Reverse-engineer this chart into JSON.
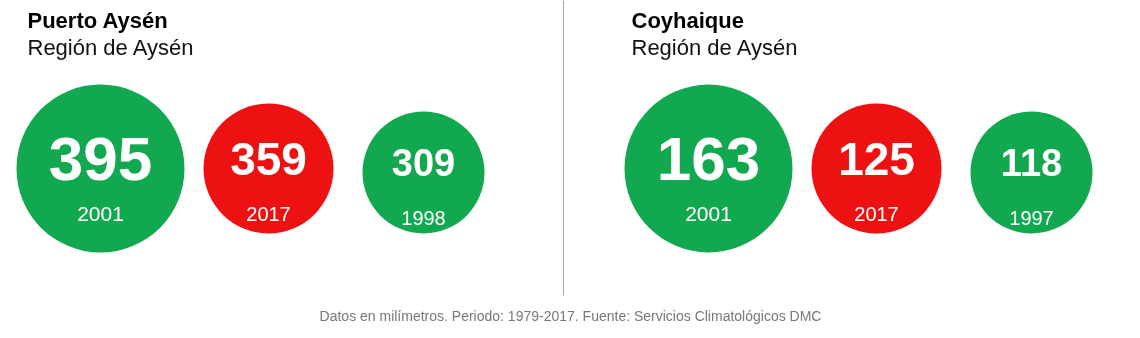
{
  "chart_data": [
    {
      "type": "other",
      "title": "Puerto Aysén",
      "subtitle": "Región de Aysén",
      "categories": [
        "2001",
        "2017",
        "1998"
      ],
      "values": [
        395,
        359,
        309
      ],
      "colors": [
        "#12a850",
        "#ee1111",
        "#12a850"
      ],
      "data_labels": true
    },
    {
      "type": "other",
      "title": "Coyhaique",
      "subtitle": "Región de Aysén",
      "categories": [
        "2001",
        "2017",
        "1997"
      ],
      "values": [
        163,
        125,
        118
      ],
      "colors": [
        "#12a850",
        "#ee1111",
        "#12a850"
      ],
      "data_labels": true,
      "annotations": [
        "Datos en milímetros. Periodo: 1979-2017. Fuente: Servicios Climatológicos DMC"
      ]
    }
  ]
}
